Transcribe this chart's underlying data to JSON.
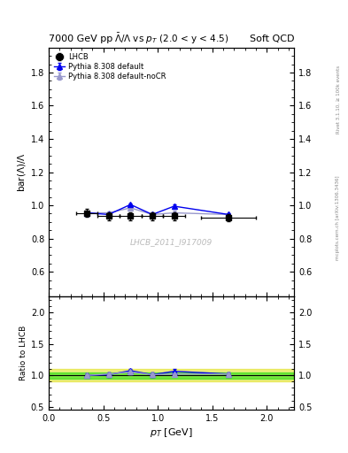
{
  "title_left": "7000 GeV pp",
  "title_right": "Soft QCD",
  "plot_title": "$\\bar{\\Lambda}/\\Lambda$ vs $p_T$ (2.0 < y < 4.5)",
  "ylabel_main": "bar($\\Lambda$)/$\\Lambda$",
  "ylabel_ratio": "Ratio to LHCB",
  "xlabel": "$p_T$ [GeV]",
  "watermark": "LHCB_2011_I917009",
  "right_label": "mcplots.cern.ch [arXiv:1306.3436]",
  "right_label2": "Rivet 3.1.10, ≥ 100k events",
  "xlim": [
    0.0,
    2.25
  ],
  "ylim_main": [
    0.45,
    1.95
  ],
  "ylim_ratio": [
    0.45,
    2.25
  ],
  "lhcb_x": [
    0.35,
    0.55,
    0.75,
    0.95,
    1.15,
    1.65
  ],
  "lhcb_y": [
    0.955,
    0.935,
    0.935,
    0.935,
    0.935,
    0.925
  ],
  "lhcb_yerr": [
    0.025,
    0.025,
    0.025,
    0.025,
    0.025,
    0.02
  ],
  "lhcb_xerr": [
    0.1,
    0.1,
    0.1,
    0.1,
    0.1,
    0.25
  ],
  "pythia_default_x": [
    0.35,
    0.55,
    0.75,
    0.95,
    1.15,
    1.65
  ],
  "pythia_default_y": [
    0.955,
    0.945,
    1.005,
    0.945,
    0.995,
    0.945
  ],
  "pythia_default_yerr": [
    0.008,
    0.008,
    0.008,
    0.008,
    0.012,
    0.008
  ],
  "pythia_nocr_x": [
    0.35,
    0.55,
    0.75,
    0.95,
    1.15,
    1.65
  ],
  "pythia_nocr_y": [
    0.955,
    0.955,
    0.985,
    0.945,
    0.955,
    0.945
  ],
  "pythia_nocr_yerr": [
    0.008,
    0.008,
    0.008,
    0.008,
    0.012,
    0.008
  ],
  "color_lhcb": "#000000",
  "color_pythia_default": "#0000ee",
  "color_pythia_nocr": "#9999cc",
  "band_green": "#00dd00",
  "band_yellow": "#dddd00",
  "band_green_alpha": 0.5,
  "band_yellow_alpha": 0.5,
  "green_band_lo": 0.95,
  "green_band_hi": 1.05,
  "yellow_band_lo": 0.9,
  "yellow_band_hi": 1.1,
  "yticks_main": [
    0.6,
    0.8,
    1.0,
    1.2,
    1.4,
    1.6,
    1.8
  ],
  "yticks_ratio": [
    0.5,
    1.0,
    1.5,
    2.0
  ],
  "xticks": [
    0.0,
    0.5,
    1.0,
    1.5,
    2.0
  ]
}
